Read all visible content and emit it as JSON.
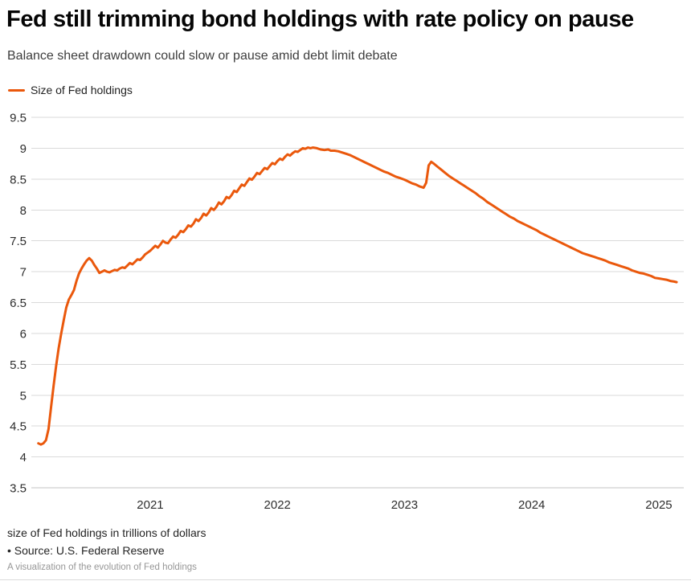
{
  "page": {
    "title": "Fed still trimming bond holdings with rate policy on pause",
    "subtitle": "Balance sheet drawdown could slow or pause amid debt limit debate",
    "caption": "size of Fed holdings in trillions of dollars",
    "source": "• Source: U.S. Federal Reserve",
    "note": "A visualization of the evolution of Fed holdings"
  },
  "legend": {
    "label": "Size of Fed holdings",
    "color": "#ea580c"
  },
  "colors": {
    "line": "#ea580c",
    "gridline": "#dadada",
    "axis_line": "#c3c3c3",
    "tick_text": "#2d2d2d"
  },
  "chart_data": {
    "type": "line",
    "title": "Fed still trimming bond holdings with rate policy on pause",
    "subtitle": "Balance sheet drawdown could slow or pause amid debt limit debate",
    "xlabel": "",
    "ylabel": "size of Fed holdings in trillions of dollars",
    "legend_position": "top-left",
    "grid": "horizontal",
    "xlim": [
      2020.065,
      2025.196
    ],
    "ylim": [
      3.5,
      9.5
    ],
    "x_ticks": [
      2021,
      2022,
      2023,
      2024,
      2025
    ],
    "y_ticks": [
      9.5,
      9,
      8.5,
      8,
      7.5,
      7,
      6.5,
      6,
      5.5,
      5,
      4.5,
      4,
      3.5
    ],
    "series": [
      {
        "name": "Size of Fed holdings",
        "color": "#ea580c",
        "points": [
          [
            2020.12,
            4.22
          ],
          [
            2020.14,
            4.2
          ],
          [
            2020.16,
            4.22
          ],
          [
            2020.18,
            4.27
          ],
          [
            2020.2,
            4.45
          ],
          [
            2020.22,
            4.8
          ],
          [
            2020.24,
            5.15
          ],
          [
            2020.26,
            5.48
          ],
          [
            2020.28,
            5.76
          ],
          [
            2020.3,
            6.0
          ],
          [
            2020.32,
            6.22
          ],
          [
            2020.34,
            6.42
          ],
          [
            2020.36,
            6.55
          ],
          [
            2020.38,
            6.62
          ],
          [
            2020.4,
            6.7
          ],
          [
            2020.42,
            6.85
          ],
          [
            2020.44,
            6.97
          ],
          [
            2020.46,
            7.05
          ],
          [
            2020.48,
            7.12
          ],
          [
            2020.5,
            7.18
          ],
          [
            2020.52,
            7.22
          ],
          [
            2020.54,
            7.18
          ],
          [
            2020.56,
            7.11
          ],
          [
            2020.58,
            7.05
          ],
          [
            2020.6,
            6.98
          ],
          [
            2020.62,
            7.0
          ],
          [
            2020.64,
            7.02
          ],
          [
            2020.66,
            7.0
          ],
          [
            2020.68,
            6.99
          ],
          [
            2020.7,
            7.01
          ],
          [
            2020.72,
            7.03
          ],
          [
            2020.74,
            7.02
          ],
          [
            2020.76,
            7.05
          ],
          [
            2020.78,
            7.07
          ],
          [
            2020.8,
            7.06
          ],
          [
            2020.82,
            7.1
          ],
          [
            2020.84,
            7.14
          ],
          [
            2020.86,
            7.12
          ],
          [
            2020.88,
            7.16
          ],
          [
            2020.9,
            7.2
          ],
          [
            2020.92,
            7.19
          ],
          [
            2020.94,
            7.23
          ],
          [
            2020.96,
            7.28
          ],
          [
            2020.98,
            7.31
          ],
          [
            2021.0,
            7.34
          ],
          [
            2021.02,
            7.38
          ],
          [
            2021.04,
            7.42
          ],
          [
            2021.06,
            7.39
          ],
          [
            2021.08,
            7.44
          ],
          [
            2021.1,
            7.5
          ],
          [
            2021.12,
            7.47
          ],
          [
            2021.14,
            7.46
          ],
          [
            2021.16,
            7.52
          ],
          [
            2021.18,
            7.57
          ],
          [
            2021.2,
            7.55
          ],
          [
            2021.22,
            7.6
          ],
          [
            2021.24,
            7.66
          ],
          [
            2021.26,
            7.64
          ],
          [
            2021.28,
            7.69
          ],
          [
            2021.3,
            7.75
          ],
          [
            2021.32,
            7.73
          ],
          [
            2021.34,
            7.78
          ],
          [
            2021.36,
            7.85
          ],
          [
            2021.38,
            7.82
          ],
          [
            2021.4,
            7.87
          ],
          [
            2021.42,
            7.94
          ],
          [
            2021.44,
            7.91
          ],
          [
            2021.46,
            7.96
          ],
          [
            2021.48,
            8.03
          ],
          [
            2021.5,
            8.0
          ],
          [
            2021.52,
            8.05
          ],
          [
            2021.54,
            8.12
          ],
          [
            2021.56,
            8.09
          ],
          [
            2021.58,
            8.14
          ],
          [
            2021.6,
            8.21
          ],
          [
            2021.62,
            8.19
          ],
          [
            2021.64,
            8.24
          ],
          [
            2021.66,
            8.31
          ],
          [
            2021.68,
            8.29
          ],
          [
            2021.7,
            8.35
          ],
          [
            2021.72,
            8.41
          ],
          [
            2021.74,
            8.39
          ],
          [
            2021.76,
            8.45
          ],
          [
            2021.78,
            8.51
          ],
          [
            2021.8,
            8.49
          ],
          [
            2021.82,
            8.54
          ],
          [
            2021.84,
            8.6
          ],
          [
            2021.86,
            8.58
          ],
          [
            2021.88,
            8.63
          ],
          [
            2021.9,
            8.68
          ],
          [
            2021.92,
            8.66
          ],
          [
            2021.94,
            8.71
          ],
          [
            2021.96,
            8.76
          ],
          [
            2021.98,
            8.74
          ],
          [
            2022.0,
            8.79
          ],
          [
            2022.02,
            8.83
          ],
          [
            2022.04,
            8.81
          ],
          [
            2022.06,
            8.86
          ],
          [
            2022.08,
            8.9
          ],
          [
            2022.1,
            8.88
          ],
          [
            2022.12,
            8.92
          ],
          [
            2022.14,
            8.95
          ],
          [
            2022.16,
            8.94
          ],
          [
            2022.18,
            8.97
          ],
          [
            2022.2,
            9.0
          ],
          [
            2022.22,
            8.99
          ],
          [
            2022.24,
            9.01
          ],
          [
            2022.26,
            9.0
          ],
          [
            2022.28,
            9.01
          ],
          [
            2022.31,
            9.0
          ],
          [
            2022.34,
            8.98
          ],
          [
            2022.37,
            8.97
          ],
          [
            2022.4,
            8.98
          ],
          [
            2022.42,
            8.96
          ],
          [
            2022.45,
            8.96
          ],
          [
            2022.48,
            8.95
          ],
          [
            2022.51,
            8.93
          ],
          [
            2022.54,
            8.91
          ],
          [
            2022.57,
            8.89
          ],
          [
            2022.6,
            8.86
          ],
          [
            2022.63,
            8.83
          ],
          [
            2022.66,
            8.8
          ],
          [
            2022.69,
            8.77
          ],
          [
            2022.72,
            8.74
          ],
          [
            2022.75,
            8.71
          ],
          [
            2022.78,
            8.68
          ],
          [
            2022.81,
            8.65
          ],
          [
            2022.84,
            8.62
          ],
          [
            2022.87,
            8.6
          ],
          [
            2022.9,
            8.57
          ],
          [
            2022.93,
            8.54
          ],
          [
            2022.96,
            8.52
          ],
          [
            2023.0,
            8.49
          ],
          [
            2023.03,
            8.46
          ],
          [
            2023.06,
            8.43
          ],
          [
            2023.09,
            8.41
          ],
          [
            2023.12,
            8.38
          ],
          [
            2023.15,
            8.36
          ],
          [
            2023.17,
            8.44
          ],
          [
            2023.19,
            8.72
          ],
          [
            2023.21,
            8.78
          ],
          [
            2023.23,
            8.75
          ],
          [
            2023.26,
            8.7
          ],
          [
            2023.29,
            8.65
          ],
          [
            2023.32,
            8.6
          ],
          [
            2023.35,
            8.55
          ],
          [
            2023.38,
            8.51
          ],
          [
            2023.41,
            8.47
          ],
          [
            2023.44,
            8.43
          ],
          [
            2023.47,
            8.39
          ],
          [
            2023.5,
            8.35
          ],
          [
            2023.53,
            8.31
          ],
          [
            2023.56,
            8.27
          ],
          [
            2023.59,
            8.22
          ],
          [
            2023.62,
            8.18
          ],
          [
            2023.65,
            8.13
          ],
          [
            2023.68,
            8.09
          ],
          [
            2023.71,
            8.05
          ],
          [
            2023.74,
            8.01
          ],
          [
            2023.77,
            7.97
          ],
          [
            2023.8,
            7.93
          ],
          [
            2023.83,
            7.89
          ],
          [
            2023.86,
            7.86
          ],
          [
            2023.89,
            7.82
          ],
          [
            2023.92,
            7.79
          ],
          [
            2023.95,
            7.76
          ],
          [
            2023.98,
            7.73
          ],
          [
            2024.01,
            7.7
          ],
          [
            2024.04,
            7.67
          ],
          [
            2024.07,
            7.63
          ],
          [
            2024.1,
            7.6
          ],
          [
            2024.13,
            7.57
          ],
          [
            2024.16,
            7.54
          ],
          [
            2024.19,
            7.51
          ],
          [
            2024.22,
            7.48
          ],
          [
            2024.25,
            7.45
          ],
          [
            2024.28,
            7.42
          ],
          [
            2024.31,
            7.39
          ],
          [
            2024.34,
            7.36
          ],
          [
            2024.37,
            7.33
          ],
          [
            2024.4,
            7.3
          ],
          [
            2024.43,
            7.28
          ],
          [
            2024.46,
            7.26
          ],
          [
            2024.49,
            7.24
          ],
          [
            2024.52,
            7.22
          ],
          [
            2024.55,
            7.2
          ],
          [
            2024.58,
            7.18
          ],
          [
            2024.61,
            7.15
          ],
          [
            2024.64,
            7.13
          ],
          [
            2024.67,
            7.11
          ],
          [
            2024.7,
            7.09
          ],
          [
            2024.73,
            7.07
          ],
          [
            2024.76,
            7.05
          ],
          [
            2024.79,
            7.02
          ],
          [
            2024.82,
            7.0
          ],
          [
            2024.85,
            6.98
          ],
          [
            2024.88,
            6.97
          ],
          [
            2024.91,
            6.95
          ],
          [
            2024.94,
            6.93
          ],
          [
            2024.97,
            6.9
          ],
          [
            2025.0,
            6.89
          ],
          [
            2025.03,
            6.88
          ],
          [
            2025.06,
            6.87
          ],
          [
            2025.09,
            6.85
          ],
          [
            2025.12,
            6.84
          ],
          [
            2025.14,
            6.83
          ]
        ]
      }
    ]
  }
}
